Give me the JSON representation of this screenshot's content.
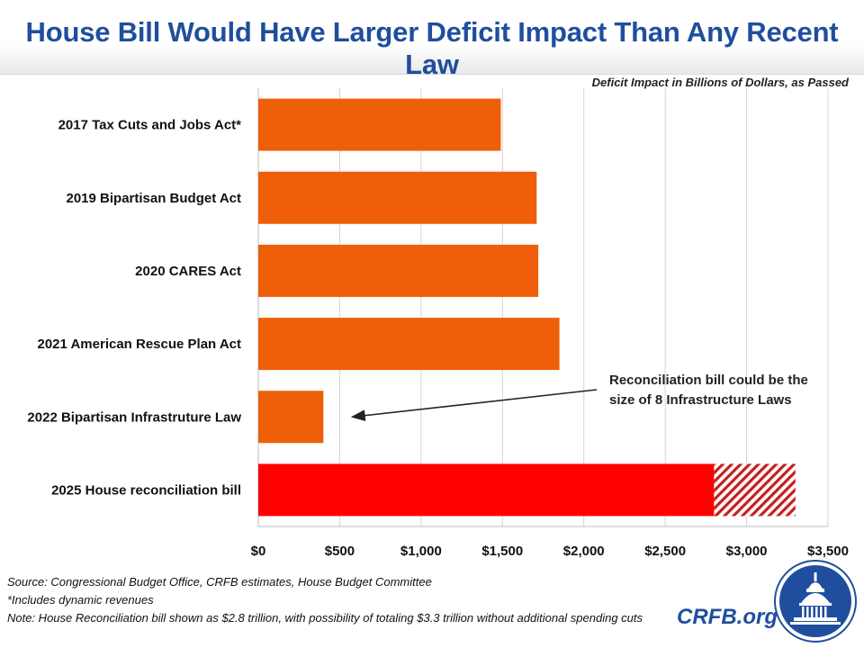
{
  "header": {
    "title": "House Bill Would Have Larger Deficit Impact Than Any Recent Law"
  },
  "chart_data": {
    "type": "bar",
    "orientation": "horizontal",
    "title": "House Bill Would Have Larger Deficit Impact Than Any Recent Law",
    "subtitle": "Deficit Impact in Billions of Dollars, as Passed",
    "categories": [
      "2017 Tax Cuts and Jobs Act*",
      "2019 Bipartisan Budget Act",
      "2020 CARES Act",
      "2021 American Rescue Plan Act",
      "2022 Bipartisan Infrastruture Law",
      "2025 House reconciliation bill"
    ],
    "values": [
      1490,
      1710,
      1720,
      1850,
      400,
      2800
    ],
    "extension": {
      "category": "2025 House reconciliation bill",
      "from": 2800,
      "to": 3300,
      "pattern": "hatched"
    },
    "colors": {
      "default": "#ef5f0a",
      "highlight": "#ff0000",
      "hatch": "#c81e1e",
      "grid": "#d4d4d4"
    },
    "xlim": [
      0,
      3500
    ],
    "xticks": [
      0,
      500,
      1000,
      1500,
      2000,
      2500,
      3000,
      3500
    ],
    "xtick_labels": [
      "$0",
      "$500",
      "$1,000",
      "$1,500",
      "$2,000",
      "$2,500",
      "$3,000",
      "$3,500"
    ],
    "grid": true,
    "annotation": {
      "lines": [
        "Reconciliation bill could be the",
        "size of 8 Infrastructure Laws"
      ],
      "points_to": "2022 Bipartisan Infrastruture Law"
    }
  },
  "footer": {
    "source": "Source: Congressional Budget Office, CRFB estimates, House Budget Committee",
    "note1": "*Includes dynamic revenues",
    "note2": "Note: House Reconciliation bill shown as $2.8 trillion, with possibility of totaling $3.3 trillion without additional spending cuts",
    "brand": "CRFB.org"
  }
}
